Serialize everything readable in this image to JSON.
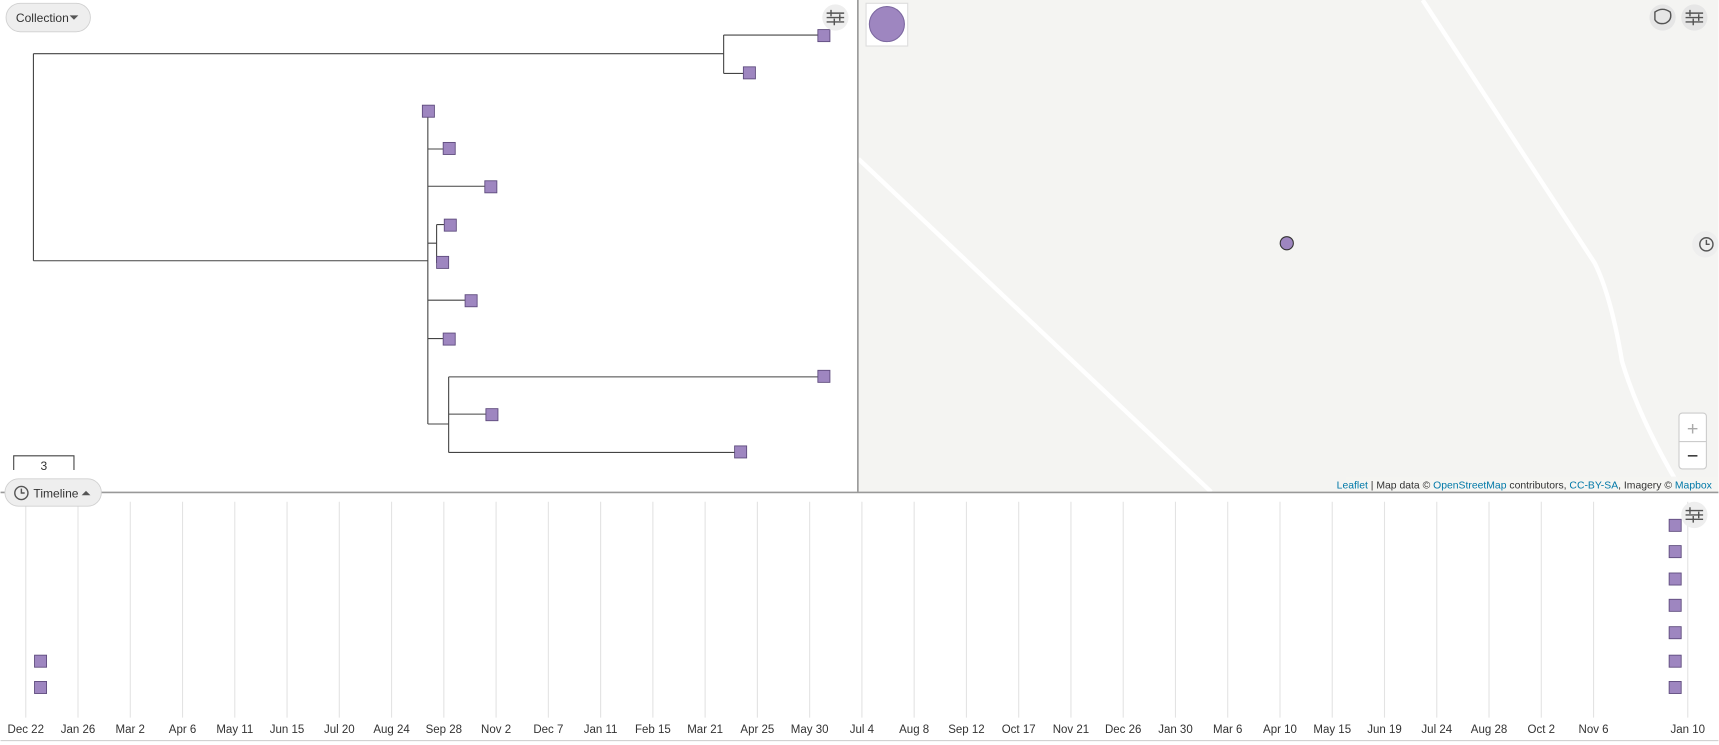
{
  "tree_panel": {
    "collection_button": "Collection",
    "scale_label": "3"
  },
  "map_panel": {
    "attribution": {
      "leaflet": "Leaflet",
      "map_data": " | Map data © ",
      "osm": "OpenStreetMap",
      "contributors": " contributors, ",
      "license": "CC-BY-SA",
      "imagery": ", Imagery © ",
      "mapbox": "Mapbox"
    },
    "zoom_in": "+",
    "zoom_out": "−"
  },
  "timeline_panel": {
    "button": "Timeline",
    "axis_labels": [
      "Dec 22",
      "Jan 26",
      "Mar 2",
      "Apr 6",
      "May 11",
      "Jun 15",
      "Jul 20",
      "Aug 24",
      "Sep 28",
      "Nov 2",
      "Dec 7",
      "Jan 11",
      "Feb 15",
      "Mar 21",
      "Apr 25",
      "May 30",
      "Jul 4",
      "Aug 8",
      "Sep 12",
      "Oct 17",
      "Nov 21",
      "Dec 26",
      "Jan 30",
      "Mar 6",
      "Apr 10",
      "May 15",
      "Jun 19",
      "Jul 24",
      "Aug 28",
      "Oct 2",
      "Nov 6",
      "Jan 10"
    ]
  }
}
